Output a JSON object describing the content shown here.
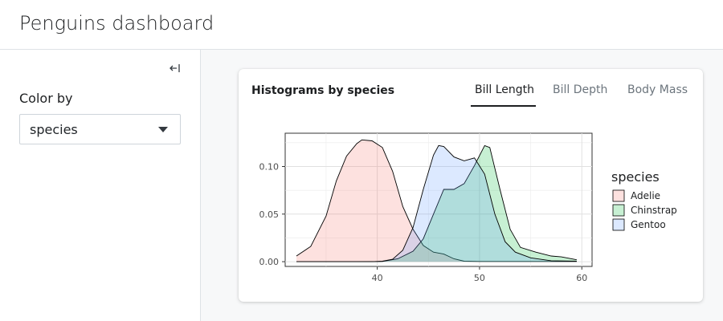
{
  "header": {
    "title": "Penguins dashboard"
  },
  "sidebar": {
    "collapse_icon": "collapse-sidebar-icon",
    "color_by_label": "Color by",
    "select_value": "species"
  },
  "card": {
    "title": "Histograms by species",
    "tabs": [
      {
        "label": "Bill Length",
        "active": true
      },
      {
        "label": "Bill Depth",
        "active": false
      },
      {
        "label": "Body Mass",
        "active": false
      }
    ]
  },
  "colors": {
    "Adelie": "#f8766d",
    "Chinstrap": "#00ba38",
    "Gentoo": "#619cff"
  },
  "chart_data": {
    "type": "area",
    "title": "",
    "xlabel": "",
    "ylabel": "",
    "x_ticks": [
      "40",
      "50",
      "60"
    ],
    "y_ticks": [
      "0.00",
      "0.05",
      "0.10"
    ],
    "xlim": [
      31,
      61
    ],
    "ylim": [
      -0.005,
      0.135
    ],
    "legend_title": "species",
    "legend_position": "right",
    "series": [
      {
        "name": "Adelie",
        "points": [
          [
            32.1,
            0.006
          ],
          [
            33.5,
            0.016
          ],
          [
            35.0,
            0.048
          ],
          [
            36.0,
            0.085
          ],
          [
            37.0,
            0.111
          ],
          [
            38.0,
            0.124
          ],
          [
            38.5,
            0.128
          ],
          [
            39.5,
            0.127
          ],
          [
            40.5,
            0.12
          ],
          [
            41.5,
            0.095
          ],
          [
            42.5,
            0.058
          ],
          [
            43.5,
            0.034
          ],
          [
            44.5,
            0.017
          ],
          [
            45.5,
            0.01
          ],
          [
            46.5,
            0.008
          ],
          [
            47.5,
            0.003
          ],
          [
            48.5,
            0.0005
          ],
          [
            50.0,
            0.0002
          ],
          [
            52.0,
            0.0002
          ],
          [
            55.0,
            0.0002
          ],
          [
            59.5,
            0.0002
          ]
        ]
      },
      {
        "name": "Chinstrap",
        "points": [
          [
            32.1,
            0.0
          ],
          [
            38.0,
            0.0
          ],
          [
            40.5,
            0.0002
          ],
          [
            42.0,
            0.003
          ],
          [
            43.5,
            0.011
          ],
          [
            44.5,
            0.024
          ],
          [
            45.5,
            0.05
          ],
          [
            46.5,
            0.076
          ],
          [
            47.5,
            0.076
          ],
          [
            48.5,
            0.082
          ],
          [
            49.5,
            0.101
          ],
          [
            50.5,
            0.122
          ],
          [
            51.0,
            0.12
          ],
          [
            52.0,
            0.076
          ],
          [
            53.0,
            0.034
          ],
          [
            54.0,
            0.015
          ],
          [
            55.5,
            0.01
          ],
          [
            57.0,
            0.006
          ],
          [
            58.0,
            0.005
          ],
          [
            59.5,
            0.002
          ]
        ]
      },
      {
        "name": "Gentoo",
        "points": [
          [
            32.1,
            0.0
          ],
          [
            39.5,
            0.0
          ],
          [
            40.5,
            0.0005
          ],
          [
            41.5,
            0.0025
          ],
          [
            42.5,
            0.012
          ],
          [
            43.5,
            0.036
          ],
          [
            44.5,
            0.076
          ],
          [
            45.5,
            0.112
          ],
          [
            46.0,
            0.122
          ],
          [
            46.5,
            0.121
          ],
          [
            47.5,
            0.11
          ],
          [
            48.5,
            0.106
          ],
          [
            49.5,
            0.109
          ],
          [
            50.5,
            0.092
          ],
          [
            51.5,
            0.05
          ],
          [
            52.5,
            0.021
          ],
          [
            53.5,
            0.01
          ],
          [
            55.0,
            0.004
          ],
          [
            57.0,
            0.001
          ],
          [
            59.5,
            0.0005
          ]
        ]
      }
    ]
  }
}
